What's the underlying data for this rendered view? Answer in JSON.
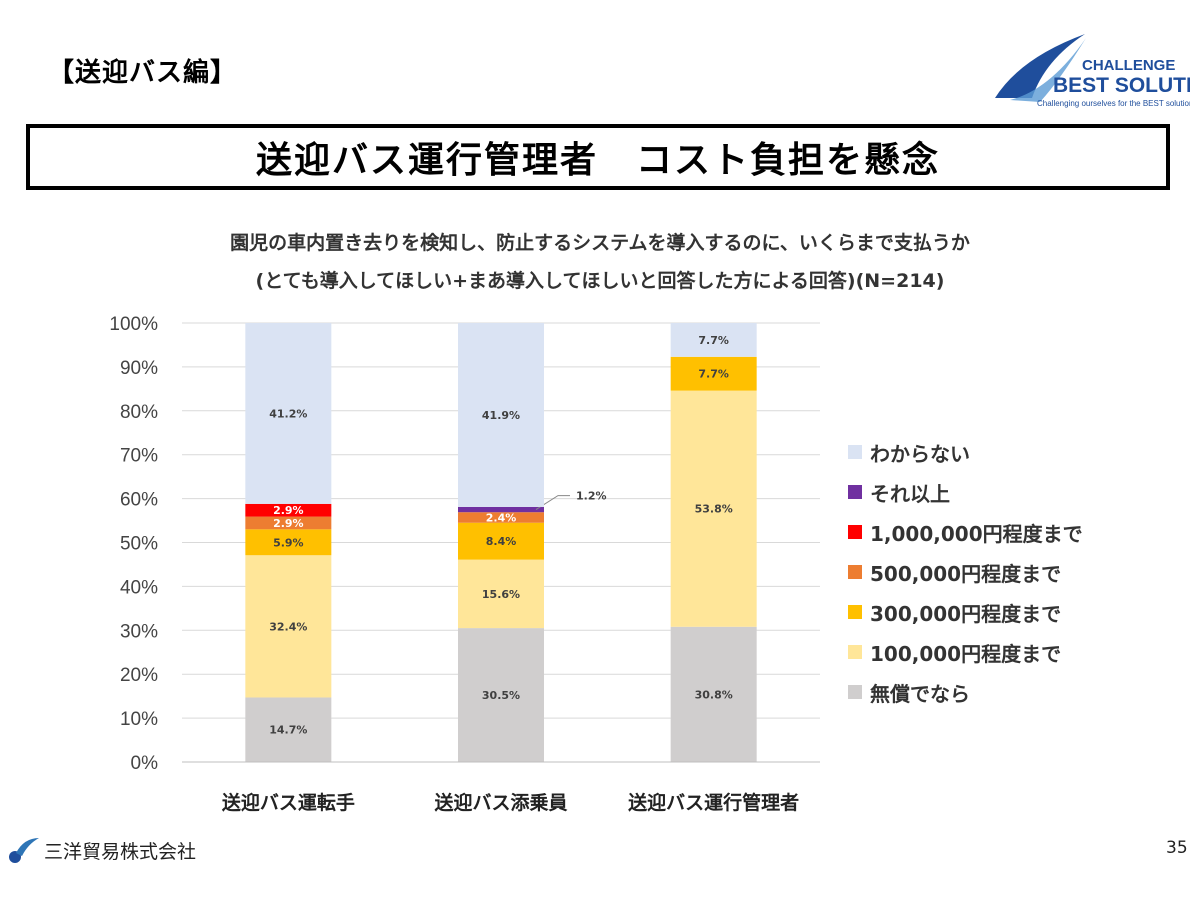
{
  "header": {
    "section_label": "【送迎バス編】",
    "logo_top": "CHALLENGE",
    "logo_main": "BEST SOLUTION",
    "logo_tagline": "Challenging ourselves for the BEST solution",
    "banner_title": "送迎バス運行管理者　コスト負担を懸念"
  },
  "footer": {
    "company": "三洋貿易株式会社",
    "page_number": "35"
  },
  "chart_data": {
    "type": "bar",
    "stacked": true,
    "title": "園児の車内置き去りを検知し、防止するシステムを導入するのに、いくらまで支払うか",
    "subtitle": "(とても導入してほしい+まあ導入してほしいと回答した方による回答)(N=214)",
    "categories": [
      "送迎バス運転手",
      "送迎バス添乗員",
      "送迎バス運行管理者"
    ],
    "ylim": [
      0,
      100
    ],
    "yticks": [
      "0%",
      "10%",
      "20%",
      "30%",
      "40%",
      "50%",
      "60%",
      "70%",
      "80%",
      "90%",
      "100%"
    ],
    "grid": true,
    "legend_position": "right",
    "series": [
      {
        "name": "無償でなら",
        "color": "#d0cece",
        "values": [
          14.7,
          30.5,
          30.8
        ],
        "labels": [
          "14.7%",
          "30.5%",
          "30.8%"
        ]
      },
      {
        "name": "100,000円程度まで",
        "color": "#ffe699",
        "values": [
          32.4,
          15.6,
          53.8
        ],
        "labels": [
          "32.4%",
          "15.6%",
          "53.8%"
        ]
      },
      {
        "name": "300,000円程度まで",
        "color": "#ffc000",
        "values": [
          5.9,
          8.4,
          7.7
        ],
        "labels": [
          "5.9%",
          "8.4%",
          "7.7%"
        ]
      },
      {
        "name": "500,000円程度まで",
        "color": "#ed7d31",
        "values": [
          2.9,
          2.4,
          0
        ],
        "labels": [
          "2.9%",
          "2.4%",
          ""
        ]
      },
      {
        "name": "1,000,000円程度まで",
        "color": "#ff0000",
        "values": [
          2.9,
          0,
          0
        ],
        "labels": [
          "2.9%",
          "",
          ""
        ]
      },
      {
        "name": "それ以上",
        "color": "#7030a0",
        "values": [
          0,
          1.2,
          0
        ],
        "labels": [
          "",
          "1.2%",
          ""
        ]
      },
      {
        "name": "わからない",
        "color": "#dae3f3",
        "values": [
          41.2,
          41.9,
          7.7
        ],
        "labels": [
          "41.2%",
          "41.9%",
          "7.7%"
        ]
      }
    ]
  }
}
